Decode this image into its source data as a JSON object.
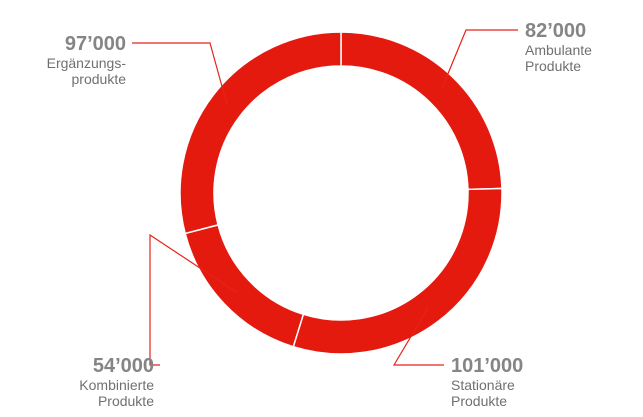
{
  "chart_data": {
    "type": "pie",
    "donut": true,
    "legend": "none",
    "segment_color": "#e51a0f",
    "leader_color": "#e5231a",
    "separator_color": "#ffffff",
    "start_at": "top, clockwise",
    "slices": [
      {
        "name": "Ambulante Produkte",
        "value": 82000,
        "value_label": "82’000",
        "label_lines": [
          "Ambulante",
          "Produkte"
        ],
        "position": "top-right"
      },
      {
        "name": "Stationäre Produkte",
        "value": 101000,
        "value_label": "101’000",
        "label_lines": [
          "Stationäre",
          "Produkte"
        ],
        "position": "bottom-right"
      },
      {
        "name": "Kombinierte Produkte",
        "value": 54000,
        "value_label": "54’000",
        "label_lines": [
          "Kombinierte",
          "Produkte"
        ],
        "position": "bottom-left"
      },
      {
        "name": "Ergänzungsprodukte",
        "value": 97000,
        "value_label": "97’000",
        "label_lines": [
          "Ergänzungs-",
          "produkte"
        ],
        "position": "top-left"
      }
    ]
  }
}
